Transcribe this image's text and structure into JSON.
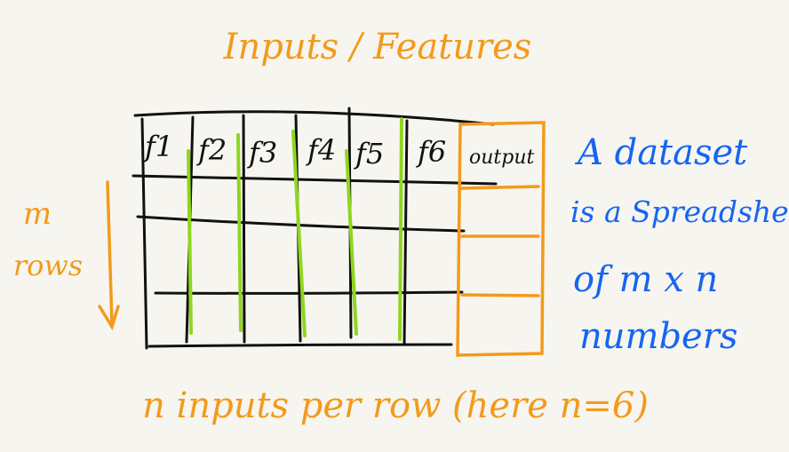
{
  "title": "Inputs / Features",
  "feature_headers": [
    "f1",
    "f2",
    "f3",
    "f4",
    "f5",
    "f6"
  ],
  "output_header": "output",
  "rows_label": {
    "line1": "m",
    "line2": "rows"
  },
  "bottom_caption": "n inputs per row (here n=6)",
  "side_note": {
    "line1": "A dataset",
    "line2": "is a Spreadsheet",
    "line3": "of m x n",
    "line4": "numbers"
  },
  "colors": {
    "background": "#f7f5f0",
    "grid": "#111111",
    "feature_lines": "#8fd61f",
    "output_and_labels": "#f39a1b",
    "side_note": "#1565f2"
  }
}
